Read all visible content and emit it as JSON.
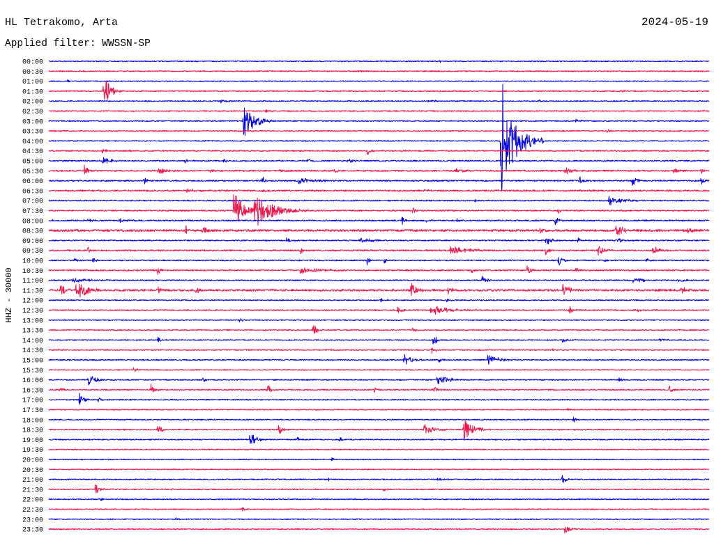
{
  "trace_colors": [
    "#0000e6",
    "#f0144a"
  ],
  "chart_data": {
    "type": "line",
    "title": "HL Tetrakomo, Arta",
    "date": "2024-05-19",
    "subtitle": "Applied filter: WWSSN-SP",
    "ylabel": "HHZ - 30000",
    "xlim": [
      0,
      30
    ],
    "grid": false,
    "rows": [
      {
        "label": "00:00",
        "noise": 1600,
        "events": [
          {
            "t": 17.7,
            "amp": 5000,
            "dur": 0.5
          },
          {
            "t": 28.55,
            "amp": 6000,
            "dur": 0.3
          }
        ]
      },
      {
        "label": "00:30",
        "noise": 1700,
        "events": [
          {
            "t": 14.0,
            "amp": 3500,
            "dur": 1.0
          },
          {
            "t": 22.6,
            "amp": 3500,
            "dur": 1.6
          }
        ]
      },
      {
        "label": "01:00",
        "noise": 1500,
        "events": [
          {
            "t": 0.8,
            "amp": 4000,
            "dur": 0.3
          }
        ]
      },
      {
        "label": "01:30",
        "noise": 1800,
        "events": [
          {
            "t": 2.45,
            "amp": 48000,
            "dur": 0.9
          },
          {
            "t": 25.97,
            "amp": 7000,
            "dur": 0.3
          }
        ]
      },
      {
        "label": "02:00",
        "noise": 1600,
        "events": [
          {
            "t": 7.7,
            "amp": 7000,
            "dur": 0.9
          },
          {
            "t": 17.2,
            "amp": 3500,
            "dur": 1.2
          },
          {
            "t": 22.27,
            "amp": 6000,
            "dur": 0.3
          }
        ]
      },
      {
        "label": "02:30",
        "noise": 1800,
        "events": [
          {
            "t": 9.8,
            "amp": 4000,
            "dur": 1.4
          },
          {
            "t": 29.7,
            "amp": 6000,
            "dur": 0.25
          }
        ]
      },
      {
        "label": "03:00",
        "noise": 1600,
        "events": [
          {
            "t": 8.81,
            "amp": 50000,
            "dur": 1.5
          },
          {
            "t": 23.9,
            "amp": 9000,
            "dur": 0.6
          }
        ]
      },
      {
        "label": "03:30",
        "noise": 1700,
        "events": [
          {
            "t": 25.3,
            "amp": 7000,
            "dur": 0.5
          },
          {
            "t": 26.3,
            "amp": 4000,
            "dur": 0.3
          }
        ]
      },
      {
        "label": "04:00",
        "noise": 1600,
        "events": [
          {
            "t": 20.56,
            "amp": 390000,
            "dur": 0.12
          },
          {
            "t": 20.5,
            "amp": 150000,
            "dur": 2.0
          },
          {
            "t": 11.6,
            "amp": 3000,
            "dur": 0.3
          }
        ]
      },
      {
        "label": "04:30",
        "noise": 1800,
        "events": [
          {
            "t": 2.4,
            "amp": 10000,
            "dur": 0.5
          },
          {
            "t": 3.6,
            "amp": 5000,
            "dur": 0.4
          },
          {
            "t": 14.4,
            "amp": 17000,
            "dur": 0.5
          },
          {
            "t": 16.0,
            "amp": 5000,
            "dur": 0.5
          }
        ]
      },
      {
        "label": "05:00",
        "noise": 2000,
        "events": [
          {
            "t": 2.4,
            "amp": 14000,
            "dur": 1.0
          },
          {
            "t": 6.15,
            "amp": 10000,
            "dur": 0.5
          },
          {
            "t": 7.9,
            "amp": 7000,
            "dur": 0.5
          },
          {
            "t": 11.7,
            "amp": 8000,
            "dur": 0.5
          },
          {
            "t": 13.55,
            "amp": 8000,
            "dur": 0.5
          }
        ]
      },
      {
        "label": "05:30",
        "noise": 2200,
        "events": [
          {
            "t": 1.55,
            "amp": 22000,
            "dur": 0.5
          },
          {
            "t": 4.9,
            "amp": 13000,
            "dur": 1.0
          },
          {
            "t": 7.3,
            "amp": 7000,
            "dur": 0.4
          },
          {
            "t": 10.45,
            "amp": 6000,
            "dur": 0.5
          },
          {
            "t": 12.9,
            "amp": 11000,
            "dur": 0.5
          },
          {
            "t": 18.4,
            "amp": 6000,
            "dur": 1.6
          },
          {
            "t": 23.4,
            "amp": 17000,
            "dur": 0.7
          },
          {
            "t": 28.3,
            "amp": 10000,
            "dur": 0.8
          },
          {
            "t": 29.6,
            "amp": 10000,
            "dur": 0.4
          }
        ]
      },
      {
        "label": "06:00",
        "noise": 2000,
        "events": [
          {
            "t": 4.28,
            "amp": 13000,
            "dur": 0.4
          },
          {
            "t": 9.66,
            "amp": 17000,
            "dur": 0.4
          },
          {
            "t": 11.3,
            "amp": 12000,
            "dur": 2.0
          },
          {
            "t": 24.07,
            "amp": 17000,
            "dur": 0.5
          },
          {
            "t": 26.45,
            "amp": 21000,
            "dur": 0.6
          },
          {
            "t": 29.6,
            "amp": 15000,
            "dur": 0.4
          }
        ]
      },
      {
        "label": "06:30",
        "noise": 2400,
        "events": [
          {
            "t": 6.2,
            "amp": 6000,
            "dur": 1.0
          },
          {
            "t": 9.66,
            "amp": 10000,
            "dur": 0.4
          },
          {
            "t": 17.0,
            "amp": 6000,
            "dur": 0.5
          }
        ]
      },
      {
        "label": "07:00",
        "noise": 1800,
        "events": [
          {
            "t": 19.3,
            "amp": 6000,
            "dur": 0.3
          },
          {
            "t": 25.4,
            "amp": 15000,
            "dur": 1.8
          }
        ]
      },
      {
        "label": "07:30",
        "noise": 2000,
        "events": [
          {
            "t": 8.35,
            "amp": 60000,
            "dur": 1.3
          },
          {
            "t": 9.3,
            "amp": 50000,
            "dur": 2.5
          },
          {
            "t": 16.5,
            "amp": 12000,
            "dur": 0.4
          },
          {
            "t": 23.1,
            "amp": 10000,
            "dur": 0.4
          }
        ]
      },
      {
        "label": "08:00",
        "noise": 2000,
        "events": [
          {
            "t": 1.74,
            "amp": 8000,
            "dur": 0.5
          },
          {
            "t": 3.2,
            "amp": 5000,
            "dur": 1.2
          },
          {
            "t": 16.0,
            "amp": 12000,
            "dur": 0.5
          },
          {
            "t": 17.1,
            "amp": 9000,
            "dur": 0.4
          },
          {
            "t": 18.5,
            "amp": 6000,
            "dur": 0.4
          },
          {
            "t": 22.96,
            "amp": 14000,
            "dur": 0.5
          }
        ]
      },
      {
        "label": "08:30",
        "noise": 3200,
        "events": [
          {
            "t": 6.18,
            "amp": 15000,
            "dur": 0.4
          },
          {
            "t": 6.97,
            "amp": 15000,
            "dur": 0.4
          },
          {
            "t": 22.3,
            "amp": 10000,
            "dur": 0.4
          },
          {
            "t": 25.7,
            "amp": 17000,
            "dur": 1.2
          },
          {
            "t": 28.98,
            "amp": 13000,
            "dur": 0.5
          }
        ]
      },
      {
        "label": "09:00",
        "noise": 1800,
        "events": [
          {
            "t": 10.77,
            "amp": 12000,
            "dur": 0.4
          },
          {
            "t": 14.1,
            "amp": 8000,
            "dur": 1.6
          },
          {
            "t": 22.55,
            "amp": 17000,
            "dur": 0.8
          },
          {
            "t": 24.0,
            "amp": 10000,
            "dur": 0.4
          },
          {
            "t": 25.8,
            "amp": 12000,
            "dur": 0.5
          }
        ]
      },
      {
        "label": "09:30",
        "noise": 2200,
        "events": [
          {
            "t": 1.74,
            "amp": 13000,
            "dur": 0.4
          },
          {
            "t": 11.4,
            "amp": 10000,
            "dur": 0.4
          },
          {
            "t": 18.2,
            "amp": 17000,
            "dur": 1.7
          },
          {
            "t": 22.5,
            "amp": 17000,
            "dur": 0.4
          },
          {
            "t": 24.9,
            "amp": 15000,
            "dur": 0.8
          },
          {
            "t": 27.4,
            "amp": 15000,
            "dur": 0.9
          }
        ]
      },
      {
        "label": "10:00",
        "noise": 1800,
        "events": [
          {
            "t": 1.1,
            "amp": 10000,
            "dur": 0.4
          },
          {
            "t": 1.96,
            "amp": 12000,
            "dur": 0.5
          },
          {
            "t": 14.4,
            "amp": 17000,
            "dur": 0.5
          },
          {
            "t": 15.2,
            "amp": 10000,
            "dur": 0.4
          },
          {
            "t": 23.1,
            "amp": 17000,
            "dur": 0.7
          },
          {
            "t": 25.2,
            "amp": 10000,
            "dur": 0.4
          },
          {
            "t": 27.1,
            "amp": 8000,
            "dur": 0.4
          }
        ]
      },
      {
        "label": "10:30",
        "noise": 2000,
        "events": [
          {
            "t": 4.9,
            "amp": 15000,
            "dur": 0.5
          },
          {
            "t": 11.4,
            "amp": 12000,
            "dur": 2.4
          },
          {
            "t": 19.16,
            "amp": 10000,
            "dur": 0.4
          },
          {
            "t": 21.7,
            "amp": 17000,
            "dur": 0.4
          },
          {
            "t": 23.9,
            "amp": 8000,
            "dur": 0.5
          }
        ]
      },
      {
        "label": "11:00",
        "noise": 1800,
        "events": [
          {
            "t": 1.0,
            "amp": 8000,
            "dur": 2.0
          },
          {
            "t": 19.64,
            "amp": 17000,
            "dur": 0.5
          },
          {
            "t": 26.5,
            "amp": 8000,
            "dur": 1.5
          },
          {
            "t": 28.6,
            "amp": 10000,
            "dur": 0.6
          }
        ]
      },
      {
        "label": "11:30",
        "noise": 3000,
        "events": [
          {
            "t": 0.5,
            "amp": 28000,
            "dur": 0.5
          },
          {
            "t": 1.2,
            "amp": 30000,
            "dur": 1.5
          },
          {
            "t": 4.9,
            "amp": 10000,
            "dur": 0.5
          },
          {
            "t": 6.6,
            "amp": 12000,
            "dur": 0.6
          },
          {
            "t": 16.4,
            "amp": 25000,
            "dur": 1.0
          },
          {
            "t": 18.1,
            "amp": 10000,
            "dur": 0.6
          },
          {
            "t": 23.3,
            "amp": 21000,
            "dur": 0.9
          },
          {
            "t": 28.7,
            "amp": 17000,
            "dur": 0.9
          }
        ]
      },
      {
        "label": "12:00",
        "noise": 1600,
        "events": [
          {
            "t": 15.05,
            "amp": 8000,
            "dur": 0.4
          },
          {
            "t": 18.05,
            "amp": 10000,
            "dur": 0.4
          }
        ]
      },
      {
        "label": "12:30",
        "noise": 1900,
        "events": [
          {
            "t": 15.8,
            "amp": 8000,
            "dur": 1.0
          },
          {
            "t": 17.3,
            "amp": 16000,
            "dur": 2.6
          },
          {
            "t": 23.6,
            "amp": 15000,
            "dur": 0.5
          },
          {
            "t": 26.6,
            "amp": 8000,
            "dur": 0.6
          }
        ]
      },
      {
        "label": "13:00",
        "noise": 1500,
        "events": [
          {
            "t": 8.62,
            "amp": 12000,
            "dur": 0.3
          }
        ]
      },
      {
        "label": "13:30",
        "noise": 1700,
        "events": [
          {
            "t": 11.97,
            "amp": 21000,
            "dur": 0.6
          },
          {
            "t": 16.47,
            "amp": 8000,
            "dur": 0.5
          }
        ]
      },
      {
        "label": "14:00",
        "noise": 1600,
        "events": [
          {
            "t": 4.91,
            "amp": 10000,
            "dur": 0.5
          },
          {
            "t": 17.42,
            "amp": 19000,
            "dur": 0.6
          },
          {
            "t": 23.28,
            "amp": 10000,
            "dur": 0.5
          },
          {
            "t": 27.72,
            "amp": 10000,
            "dur": 0.5
          }
        ]
      },
      {
        "label": "14:30",
        "noise": 1700,
        "events": [
          {
            "t": 17.36,
            "amp": 10000,
            "dur": 0.5
          },
          {
            "t": 22.81,
            "amp": 8000,
            "dur": 0.4
          }
        ]
      },
      {
        "label": "15:00",
        "noise": 1700,
        "events": [
          {
            "t": 16.1,
            "amp": 21000,
            "dur": 0.9
          },
          {
            "t": 17.67,
            "amp": 12000,
            "dur": 0.4
          },
          {
            "t": 19.9,
            "amp": 19000,
            "dur": 1.3
          }
        ]
      },
      {
        "label": "15:30",
        "noise": 1600,
        "events": [
          {
            "t": 3.8,
            "amp": 8000,
            "dur": 0.5
          }
        ]
      },
      {
        "label": "16:00",
        "noise": 1700,
        "events": [
          {
            "t": 1.74,
            "amp": 17000,
            "dur": 1.1
          },
          {
            "t": 6.97,
            "amp": 10000,
            "dur": 0.4
          },
          {
            "t": 17.6,
            "amp": 15000,
            "dur": 1.4
          },
          {
            "t": 25.82,
            "amp": 10000,
            "dur": 0.5
          }
        ]
      },
      {
        "label": "16:30",
        "noise": 1900,
        "events": [
          {
            "t": 0.48,
            "amp": 10000,
            "dur": 0.4
          },
          {
            "t": 4.6,
            "amp": 17000,
            "dur": 0.4
          },
          {
            "t": 9.9,
            "amp": 17000,
            "dur": 0.5
          },
          {
            "t": 14.73,
            "amp": 12000,
            "dur": 0.4
          },
          {
            "t": 17.42,
            "amp": 12000,
            "dur": 0.5
          },
          {
            "t": 28.13,
            "amp": 17000,
            "dur": 0.4
          }
        ]
      },
      {
        "label": "17:00",
        "noise": 1700,
        "events": [
          {
            "t": 1.35,
            "amp": 23000,
            "dur": 0.6
          },
          {
            "t": 2.2,
            "amp": 10000,
            "dur": 0.4
          }
        ]
      },
      {
        "label": "17:30",
        "noise": 1500,
        "events": [
          {
            "t": 23.5,
            "amp": 6000,
            "dur": 0.4
          }
        ]
      },
      {
        "label": "18:00",
        "noise": 1600,
        "events": [
          {
            "t": 23.8,
            "amp": 10000,
            "dur": 0.4
          }
        ]
      },
      {
        "label": "18:30",
        "noise": 1900,
        "events": [
          {
            "t": 4.91,
            "amp": 17000,
            "dur": 0.6
          },
          {
            "t": 10.4,
            "amp": 17000,
            "dur": 0.5
          },
          {
            "t": 17.0,
            "amp": 16000,
            "dur": 1.3
          },
          {
            "t": 18.8,
            "amp": 33000,
            "dur": 1.3
          }
        ]
      },
      {
        "label": "19:00",
        "noise": 1700,
        "events": [
          {
            "t": 9.1,
            "amp": 25000,
            "dur": 0.9
          },
          {
            "t": 11.24,
            "amp": 10000,
            "dur": 0.5
          },
          {
            "t": 13.18,
            "amp": 12000,
            "dur": 0.3
          }
        ]
      },
      {
        "label": "19:30",
        "noise": 1500,
        "events": []
      },
      {
        "label": "20:00",
        "noise": 1500,
        "events": [
          {
            "t": 12.83,
            "amp": 8000,
            "dur": 0.3
          }
        ]
      },
      {
        "label": "20:30",
        "noise": 1500,
        "events": []
      },
      {
        "label": "21:00",
        "noise": 1600,
        "events": [
          {
            "t": 12.67,
            "amp": 6000,
            "dur": 0.3
          },
          {
            "t": 17.64,
            "amp": 10000,
            "dur": 0.4
          },
          {
            "t": 23.28,
            "amp": 15000,
            "dur": 0.5
          },
          {
            "t": 29.88,
            "amp": 10000,
            "dur": 0.12
          }
        ]
      },
      {
        "label": "21:30",
        "noise": 1800,
        "events": [
          {
            "t": 2.06,
            "amp": 17000,
            "dur": 0.6
          },
          {
            "t": 5.54,
            "amp": 15000,
            "dur": 0.2
          },
          {
            "t": 15.14,
            "amp": 8000,
            "dur": 0.4
          }
        ]
      },
      {
        "label": "22:00",
        "noise": 1500,
        "events": [
          {
            "t": 2.3,
            "amp": 6000,
            "dur": 0.4
          }
        ]
      },
      {
        "label": "22:30",
        "noise": 1600,
        "events": [
          {
            "t": 8.74,
            "amp": 10000,
            "dur": 0.4
          }
        ]
      },
      {
        "label": "23:00",
        "noise": 1500,
        "events": [
          {
            "t": 5.7,
            "amp": 6000,
            "dur": 0.6
          }
        ]
      },
      {
        "label": "23:30",
        "noise": 1700,
        "events": [
          {
            "t": 23.4,
            "amp": 17000,
            "dur": 0.6
          }
        ]
      }
    ]
  }
}
